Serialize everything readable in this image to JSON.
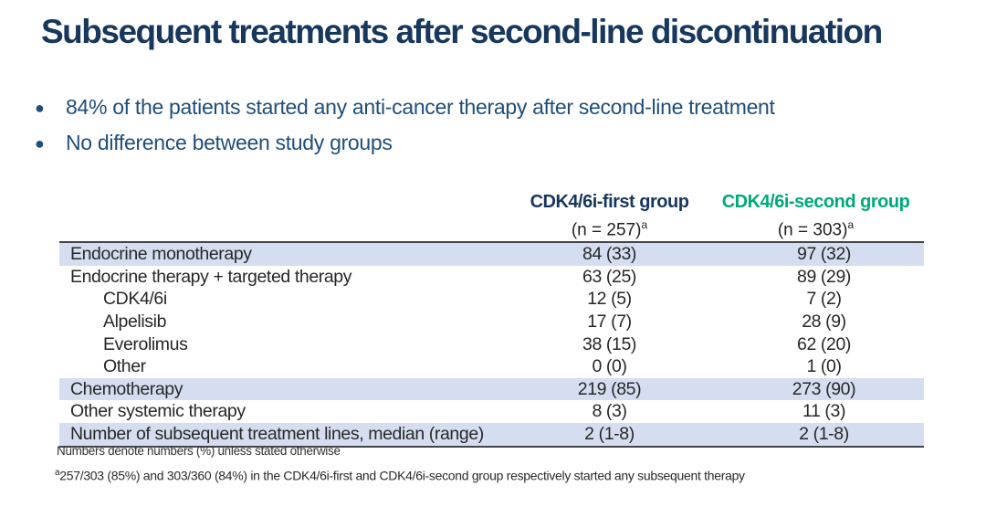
{
  "title": "Subsequent treatments after second-line discontinuation",
  "bullets": [
    "84% of the patients started any anti-cancer therapy after second-line treatment",
    "No difference between study groups"
  ],
  "table": {
    "columns": [
      {
        "label": "CDK4/6i-first group",
        "n_label": "(n = 257)",
        "superscript": "a",
        "color": "#17375D"
      },
      {
        "label": "CDK4/6i-second group",
        "n_label": "(n = 303)",
        "superscript": "a",
        "color": "#00AA7D"
      }
    ],
    "rows": [
      {
        "label": "Endocrine monotherapy",
        "first": "84 (33)",
        "second": "97 (32)",
        "highlighted": true,
        "indent": false
      },
      {
        "label": "Endocrine therapy + targeted therapy",
        "first": "63 (25)",
        "second": "89 (29)",
        "highlighted": false,
        "indent": false
      },
      {
        "label": "CDK4/6i",
        "first": "12 (5)",
        "second": "7 (2)",
        "highlighted": false,
        "indent": true
      },
      {
        "label": "Alpelisib",
        "first": "17 (7)",
        "second": "28 (9)",
        "highlighted": false,
        "indent": true
      },
      {
        "label": "Everolimus",
        "first": "38 (15)",
        "second": "62 (20)",
        "highlighted": false,
        "indent": true
      },
      {
        "label": "Other",
        "first": "0 (0)",
        "second": "1 (0)",
        "highlighted": false,
        "indent": true
      },
      {
        "label": "Chemotherapy",
        "first": "219 (85)",
        "second": "273 (90)",
        "highlighted": true,
        "indent": false
      },
      {
        "label": "Other systemic therapy",
        "first": "8 (3)",
        "second": "11 (3)",
        "highlighted": false,
        "indent": false
      },
      {
        "label": "Number of subsequent treatment lines, median (range)",
        "first": "2 (1-8)",
        "second": "2 (1-8)",
        "highlighted": true,
        "indent": false
      }
    ]
  },
  "footnotes": {
    "note1": "Numbers denote numbers (%) unless stated otherwise",
    "note2_sup": "a",
    "note2": "257/303 (85%) and 303/360 (84%) in the CDK4/6i-first and CDK4/6i-second group respectively started any subsequent therapy"
  },
  "colors": {
    "title_navy": "#17375D",
    "bullet_blue": "#1F4E79",
    "second_group_green": "#00AA7D",
    "row_highlight": "#D5DEF0",
    "table_border": "#43454A"
  }
}
